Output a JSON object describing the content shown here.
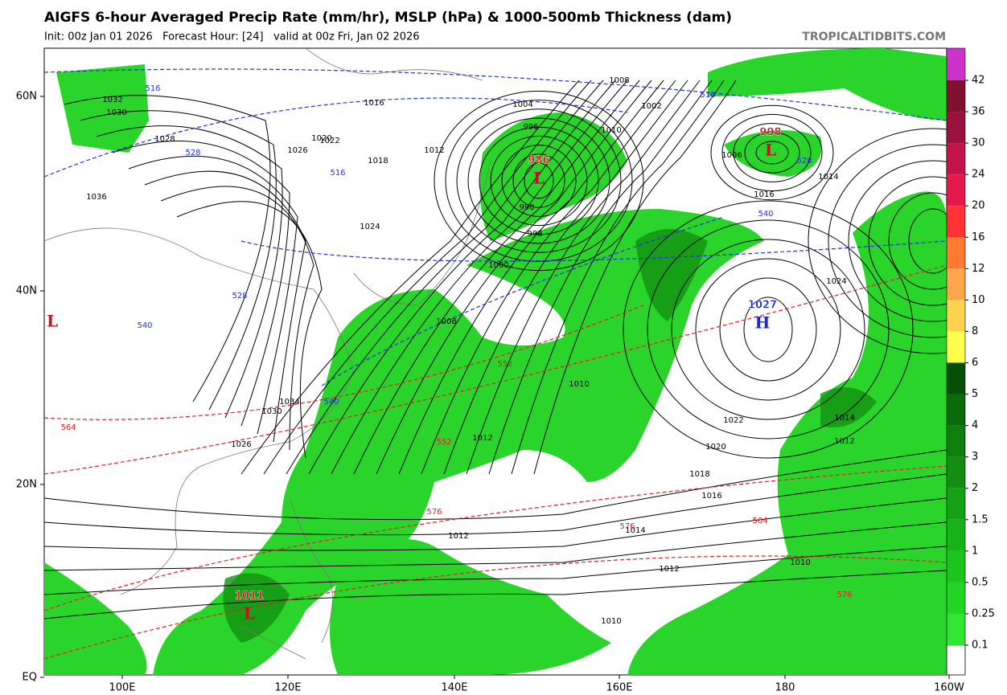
{
  "header": {
    "title": "AIGFS 6-hour Averaged Precip Rate (mm/hr), MSLP (hPa) & 1000-500mb Thickness (dam)",
    "init": "Init: 00z Jan 01 2026   Forecast Hour: [24]   valid at 00z Fri, Jan 02 2026",
    "site": "TROPICALTIDBITS.COM"
  },
  "map": {
    "lat_labels": [
      "60N",
      "40N",
      "20N",
      "EQ"
    ],
    "lon_labels": [
      "100E",
      "120E",
      "140E",
      "160E",
      "180",
      "160W"
    ],
    "centers": [
      {
        "letter": "L",
        "value": 986
      },
      {
        "letter": "L",
        "value": 998
      },
      {
        "letter": "H",
        "value": 1027
      },
      {
        "letter": "L",
        "value": 1011
      },
      {
        "letter": "L"
      }
    ],
    "isobar_labels": [
      1032,
      1030,
      1028,
      1036,
      1024,
      1020,
      1016,
      1012,
      1010,
      1008,
      1004,
      1000,
      996,
      990,
      998,
      1006,
      1002,
      1018,
      1022,
      1026,
      1014,
      1016,
      1024,
      1022,
      1020,
      1018,
      1016,
      1014,
      1012,
      1012,
      1010,
      1010,
      1008,
      1012,
      1014,
      1010,
      1012,
      1034,
      1030,
      1026
    ],
    "thickness_labels": [
      516,
      516,
      528,
      528,
      540,
      540,
      552,
      552,
      564,
      564,
      576,
      576,
      576,
      516,
      528,
      540
    ]
  },
  "colorbar": {
    "ticks": [
      0.1,
      0.25,
      0.5,
      1,
      1.5,
      2,
      3,
      4,
      5,
      6,
      8,
      10,
      12,
      16,
      20,
      24,
      30,
      36,
      42
    ],
    "colors": [
      "#33e533",
      "#22d522",
      "#1cc41c",
      "#18b318",
      "#15a115",
      "#128f12",
      "#0e7e0e",
      "#0b6b0b",
      "#074f07",
      "#ffff4d",
      "#ffd24d",
      "#ffa64d",
      "#ff7a33",
      "#ff3333",
      "#e6194d",
      "#c2144a",
      "#99123d",
      "#801030",
      "#cc33cc",
      "#ff33ff"
    ]
  }
}
